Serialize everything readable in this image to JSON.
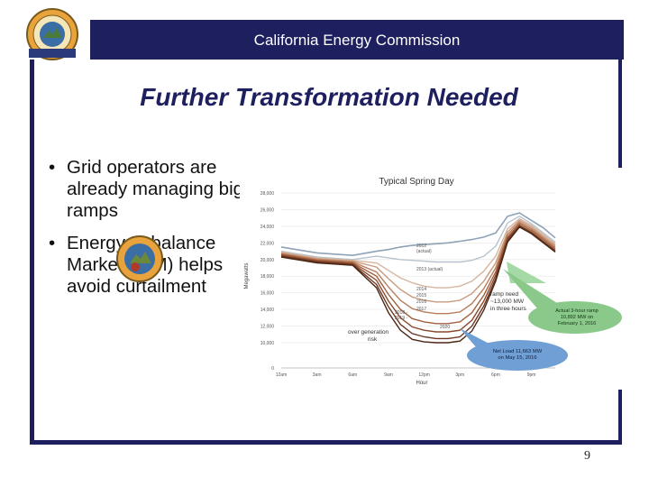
{
  "header": {
    "title": "California Energy Commission"
  },
  "slide": {
    "title": "Further Transformation Needed",
    "bullets": [
      "Grid operators are already managing big ramps",
      "Energy Imbalance Market (EIM) helps avoid curtailment"
    ],
    "page_number": "9"
  },
  "colors": {
    "brand_navy": "#1d1f5e"
  },
  "chart_data": {
    "type": "line",
    "title": "Typical Spring Day",
    "xlabel": "Hour",
    "ylabel": "Megawatts",
    "x_ticks": [
      "12am",
      "3am",
      "6am",
      "9am",
      "12pm",
      "3pm",
      "6pm",
      "9pm"
    ],
    "y_ticks": [
      0,
      10000,
      12000,
      14000,
      16000,
      18000,
      20000,
      22000,
      24000,
      26000,
      28000
    ],
    "y_tick_labels": [
      "0",
      "10,000",
      "12,000",
      "14,000",
      "16,000",
      "18,000",
      "20,000",
      "22,000",
      "24,000",
      "26,000",
      "28,000"
    ],
    "x": [
      0,
      3,
      6,
      8,
      9,
      10,
      11,
      12,
      13,
      14,
      15,
      16,
      17,
      18,
      19,
      20,
      21,
      22,
      23
    ],
    "series": [
      {
        "name": "2012 (actual)",
        "color": "#8fa2b6",
        "values": [
          21500,
          20800,
          20500,
          21000,
          21200,
          21500,
          21700,
          21800,
          21900,
          22000,
          22200,
          22400,
          22700,
          23200,
          25200,
          25600,
          24700,
          23800,
          22600
        ]
      },
      {
        "name": "2013 (actual)",
        "color": "#b7c3cf",
        "values": [
          21000,
          20300,
          20000,
          20400,
          20200,
          20000,
          19900,
          19800,
          19700,
          19700,
          19700,
          19900,
          20400,
          21600,
          24400,
          25200,
          24300,
          23200,
          22100
        ]
      },
      {
        "name": "2014",
        "color": "#d6b6a0",
        "values": [
          20900,
          20200,
          19900,
          19600,
          18700,
          17800,
          17200,
          16800,
          16600,
          16600,
          16800,
          17400,
          18600,
          20400,
          23700,
          24900,
          24100,
          23000,
          21900
        ]
      },
      {
        "name": "2015",
        "color": "#c99a7c",
        "values": [
          20800,
          20100,
          19800,
          19100,
          17700,
          16400,
          15500,
          15100,
          14900,
          14900,
          15100,
          15900,
          17400,
          19600,
          23300,
          24700,
          23900,
          22800,
          21700
        ]
      },
      {
        "name": "2016",
        "color": "#b87d5c",
        "values": [
          20700,
          20000,
          19700,
          18500,
          16700,
          15100,
          14100,
          13700,
          13500,
          13500,
          13700,
          14700,
          16500,
          19000,
          23000,
          24500,
          23700,
          22600,
          21500
        ]
      },
      {
        "name": "2017",
        "color": "#a1603f",
        "values": [
          20600,
          19900,
          19600,
          18000,
          15800,
          14000,
          12900,
          12500,
          12300,
          12300,
          12500,
          13600,
          15700,
          18500,
          22700,
          24300,
          23500,
          22400,
          21300
        ]
      },
      {
        "name": "2018",
        "color": "#8a4a2d",
        "values": [
          20500,
          19800,
          19500,
          17500,
          15000,
          13000,
          11900,
          11500,
          11300,
          11300,
          11500,
          12700,
          15000,
          18100,
          22500,
          24100,
          23300,
          22200,
          21100
        ]
      },
      {
        "name": "2019",
        "color": "#6a3620",
        "values": [
          20400,
          19700,
          19400,
          17000,
          14300,
          12200,
          11100,
          10700,
          10500,
          10500,
          10700,
          12000,
          14400,
          17700,
          22300,
          24000,
          23200,
          22100,
          21000
        ]
      },
      {
        "name": "2020",
        "color": "#4a2615",
        "values": [
          20300,
          19600,
          19300,
          16600,
          13600,
          11500,
          10400,
          10100,
          10000,
          10000,
          10200,
          11400,
          13900,
          17400,
          22100,
          23900,
          23100,
          22000,
          20900
        ]
      }
    ],
    "series_labels": [
      {
        "text": "2012",
        "sub": "(actual)"
      },
      {
        "text": "2013 (actual)"
      },
      {
        "text": "2014"
      },
      {
        "text": "2015"
      },
      {
        "text": "2016"
      },
      {
        "text": "2017"
      },
      {
        "text": "2018 -"
      },
      {
        "text": "2019 -"
      },
      {
        "text": "2020"
      }
    ],
    "annotations": [
      {
        "text": "ramp need ~13,000 MW in three hours"
      },
      {
        "text": "over generation risk"
      },
      {
        "text": "Actual 3-hour ramp 10,892 MW on February 1, 2016"
      },
      {
        "text": "Net Load 11,663 MW on May 15, 2016"
      }
    ]
  }
}
